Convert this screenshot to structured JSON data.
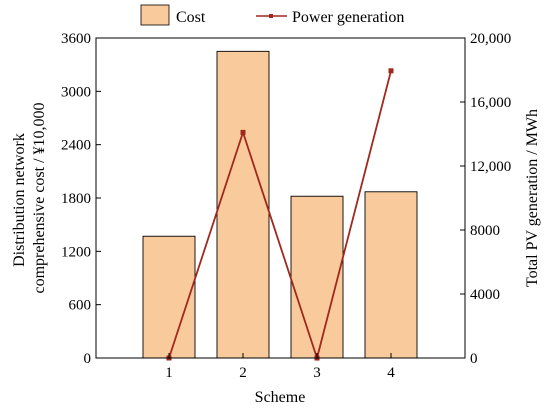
{
  "chart_data": {
    "type": "bar+line",
    "categories": [
      "1",
      "2",
      "3",
      "4"
    ],
    "xlabel": "Scheme",
    "ylabel_left": "Distribution network comprehensive cost / ¥10,000",
    "ylabel_left_lines": [
      "Distribution network",
      "comprehensive cost / ¥10,000"
    ],
    "ylabel_right": "Total PV generation / MWh",
    "ylim_left": [
      0,
      3600
    ],
    "ylim_right": [
      0,
      20000
    ],
    "yticks_left": [
      0,
      600,
      1200,
      1800,
      2400,
      3000,
      3600
    ],
    "yticks_left_labels": [
      "0",
      "600",
      "1200",
      "1800",
      "2400",
      "3000",
      "3600"
    ],
    "yticks_right": [
      0,
      4000,
      8000,
      12000,
      16000,
      20000
    ],
    "yticks_right_labels": [
      "0",
      "4000",
      "8000",
      "12,000",
      "16,000",
      "20,000"
    ],
    "series": [
      {
        "name": "Cost",
        "type": "bar",
        "axis": "left",
        "values": [
          1370,
          3450,
          1820,
          1870
        ]
      },
      {
        "name": "Power generation",
        "type": "line",
        "axis": "right",
        "values": [
          0,
          14100,
          0,
          17950
        ]
      }
    ],
    "legend": {
      "placement": "top",
      "items": [
        "Cost",
        "Power generation"
      ]
    },
    "grid": false,
    "colors": {
      "bar_fill": "#f9cb9c",
      "bar_edge": "#000000",
      "line": "#a0281e",
      "axis": "#000000"
    }
  }
}
